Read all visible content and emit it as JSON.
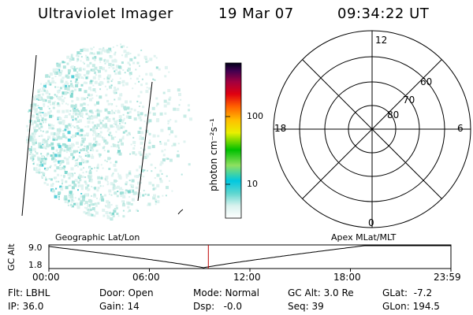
{
  "header": {
    "instrument": "Ultraviolet Imager",
    "date": "19 Mar 07",
    "time": "09:34:22 UT"
  },
  "colorbar": {
    "label": "photon cm⁻²s⁻¹",
    "ticks": [
      "100",
      "10"
    ]
  },
  "polar": {
    "mlt_labels": {
      "top": "12",
      "left": "18",
      "right": "6",
      "bottom": "0"
    },
    "lat_labels": [
      "60",
      "70",
      "80"
    ]
  },
  "timeline": {
    "left_title": "Geographic Lat/Lon",
    "right_title": "Apex MLat/MLT",
    "ylabel": "GC Alt",
    "y_ticks": [
      "9.0",
      "1.8"
    ],
    "x_ticks": [
      "00:00",
      "06:00",
      "12:00",
      "18:00",
      "23:59"
    ],
    "current_time_frac": 0.3966
  },
  "status": {
    "row1": {
      "filter": "Flt: LBHL",
      "door": "Door: Open",
      "mode": "Mode: Normal",
      "gc_alt": "GC Alt: 3.0 Re",
      "glat": "GLat:  -7.2"
    },
    "row2": {
      "ip": "IP: 36.0",
      "gain": "Gain: 14",
      "dsp": "Dsp:   -0.0",
      "seq": "Seq: 39",
      "glon": "GLon: 194.5"
    }
  },
  "colors": {
    "colorbar": [
      "#ffffff",
      "#cfeee8",
      "#5fd6cf",
      "#00c0e0",
      "#8fe000",
      "#00c000",
      "#e8e800",
      "#ffb000",
      "#ff5000",
      "#e00000",
      "#a00040",
      "#400060",
      "#000020"
    ],
    "image_speckle": "#8fd8d0",
    "current_time_marker": "#c00000"
  }
}
